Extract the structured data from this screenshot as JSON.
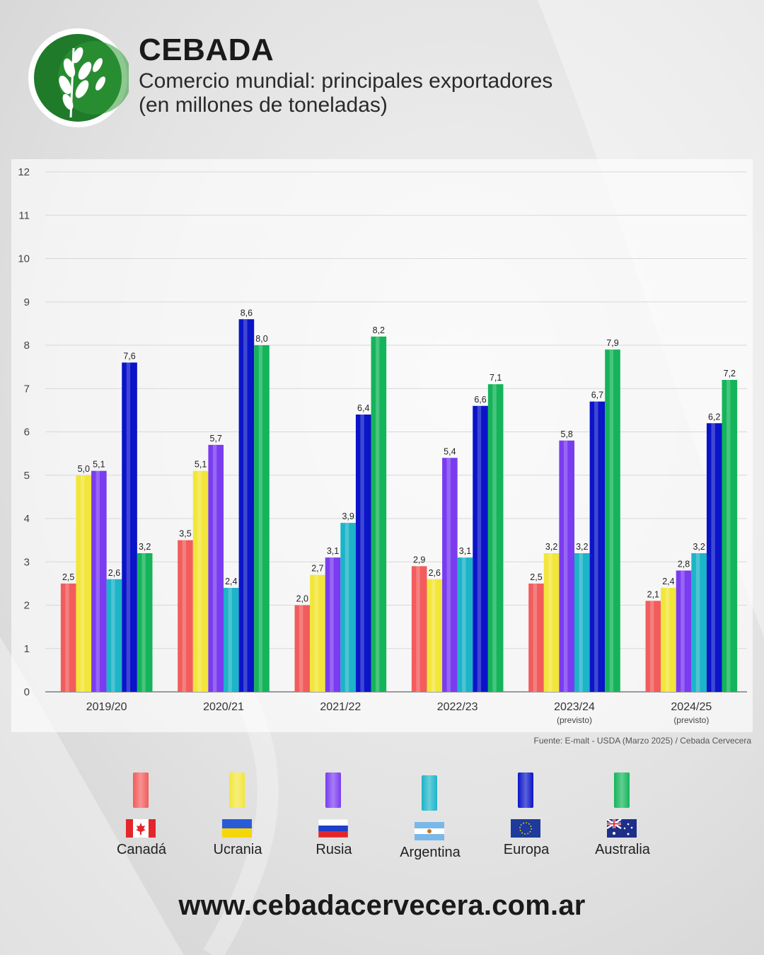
{
  "header": {
    "title": "CEBADA",
    "subtitle_line1": "Comercio mundial: principales exportadores",
    "subtitle_line2": "(en millones de toneladas)"
  },
  "colors": {
    "canada": "#f25c5c",
    "ucrania": "#f2e63a",
    "rusia": "#7a3cf0",
    "argentina": "#1cb4c8",
    "europa": "#0a14c8",
    "australia": "#14b45a",
    "logo_green": "#1f7a2a"
  },
  "chart_data": {
    "type": "bar",
    "categories": [
      "2019/20",
      "2020/21",
      "2021/22",
      "2022/23",
      "2023/24",
      "2024/25"
    ],
    "category_notes": [
      "",
      "",
      "",
      "",
      "(previsto)",
      "(previsto)"
    ],
    "series": [
      {
        "name": "Canadá",
        "values": [
          2.5,
          3.5,
          2.0,
          2.9,
          2.5,
          2.1
        ],
        "labels": [
          "2,5",
          "3,5",
          "2,0",
          "2,9",
          "2,5",
          "2,1"
        ]
      },
      {
        "name": "Ucrania",
        "values": [
          5.0,
          5.1,
          2.7,
          2.6,
          3.2,
          2.4
        ],
        "labels": [
          "5,0",
          "5,1",
          "2,7",
          "2,6",
          "3,2",
          "2,4"
        ]
      },
      {
        "name": "Rusia",
        "values": [
          5.1,
          5.7,
          3.1,
          5.4,
          5.8,
          2.8
        ],
        "labels": [
          "5,1",
          "5,7",
          "3,1",
          "5,4",
          "5,8",
          "2,8"
        ]
      },
      {
        "name": "Argentina",
        "values": [
          2.6,
          2.4,
          3.9,
          3.1,
          3.2,
          3.2
        ],
        "labels": [
          "2,6",
          "2,4",
          "3,9",
          "3,1",
          "3,2",
          "3,2"
        ]
      },
      {
        "name": "Europa",
        "values": [
          7.6,
          8.6,
          6.4,
          6.6,
          6.7,
          6.2
        ],
        "labels": [
          "7,6",
          "8,6",
          "6,4",
          "6,6",
          "6,7",
          "6,2"
        ]
      },
      {
        "name": "Australia",
        "values": [
          3.2,
          8.0,
          8.2,
          7.1,
          7.9,
          7.2
        ],
        "labels": [
          "3,2",
          "8,0",
          "8,2",
          "7,1",
          "7,9",
          "7,2"
        ]
      }
    ],
    "yticks": [
      "0",
      "1",
      "2",
      "3",
      "4",
      "5",
      "6",
      "7",
      "8",
      "9",
      "10",
      "11",
      "12"
    ],
    "ylim": [
      0,
      12
    ],
    "grid": true,
    "legend_position": "bottom",
    "source": "Fuente: E-malt - USDA (Marzo 2025) / Cebada Cervecera"
  },
  "legend": [
    {
      "label": "Canadá",
      "flag": "canada-flag"
    },
    {
      "label": "Ucrania",
      "flag": "ukraine-flag"
    },
    {
      "label": "Rusia",
      "flag": "russia-flag"
    },
    {
      "label": "Argentina",
      "flag": "argentina-flag"
    },
    {
      "label": "Europa",
      "flag": "eu-flag"
    },
    {
      "label": "Australia",
      "flag": "australia-flag"
    }
  ],
  "footer": {
    "url": "www.cebadacervecera.com.ar"
  }
}
